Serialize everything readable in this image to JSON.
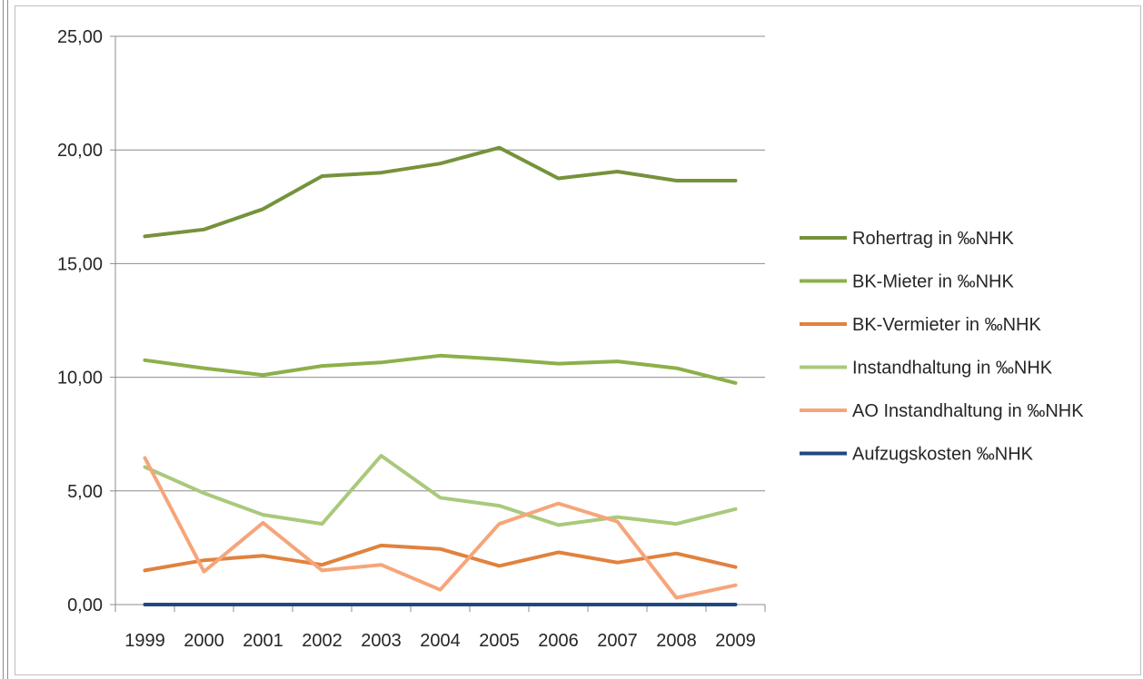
{
  "chart_data": {
    "type": "line",
    "title": "",
    "xlabel": "",
    "ylabel": "",
    "categories": [
      "1999",
      "2000",
      "2001",
      "2002",
      "2003",
      "2004",
      "2005",
      "2006",
      "2007",
      "2008",
      "2009"
    ],
    "ylim": [
      0,
      25
    ],
    "yticks": [
      "0,00",
      "5,00",
      "10,00",
      "15,00",
      "20,00",
      "25,00"
    ],
    "ytick_values": [
      0,
      5,
      10,
      15,
      20,
      25
    ],
    "grid": true,
    "legend_position": "right",
    "series": [
      {
        "name": "Rohertrag in ‰NHK",
        "color": "#76923c",
        "values": [
          16.2,
          16.5,
          17.4,
          18.85,
          19.0,
          19.4,
          20.1,
          18.75,
          19.05,
          18.65,
          18.65
        ]
      },
      {
        "name": "BK-Mieter in ‰NHK",
        "color": "#8cb04a",
        "values": [
          10.75,
          10.4,
          10.1,
          10.5,
          10.65,
          10.95,
          10.8,
          10.6,
          10.7,
          10.4,
          9.75
        ]
      },
      {
        "name": "BK-Vermieter in ‰NHK",
        "color": "#e0823e",
        "values": [
          1.5,
          1.95,
          2.15,
          1.75,
          2.6,
          2.45,
          1.7,
          2.3,
          1.85,
          2.25,
          1.65
        ]
      },
      {
        "name": "Instandhaltung in ‰NHK",
        "color": "#a9c97c",
        "values": [
          6.05,
          4.9,
          3.95,
          3.55,
          6.55,
          4.7,
          4.35,
          3.5,
          3.85,
          3.55,
          4.2
        ]
      },
      {
        "name": "AO Instandhaltung in ‰NHK",
        "color": "#f6a57a",
        "values": [
          6.45,
          1.45,
          3.6,
          1.5,
          1.75,
          0.65,
          3.55,
          4.45,
          3.65,
          0.3,
          0.85
        ]
      },
      {
        "name": "Aufzugskosten ‰NHK",
        "color": "#1f497d",
        "values": [
          0,
          0,
          0,
          0,
          0,
          0,
          0,
          0,
          0,
          0,
          0
        ]
      }
    ]
  }
}
